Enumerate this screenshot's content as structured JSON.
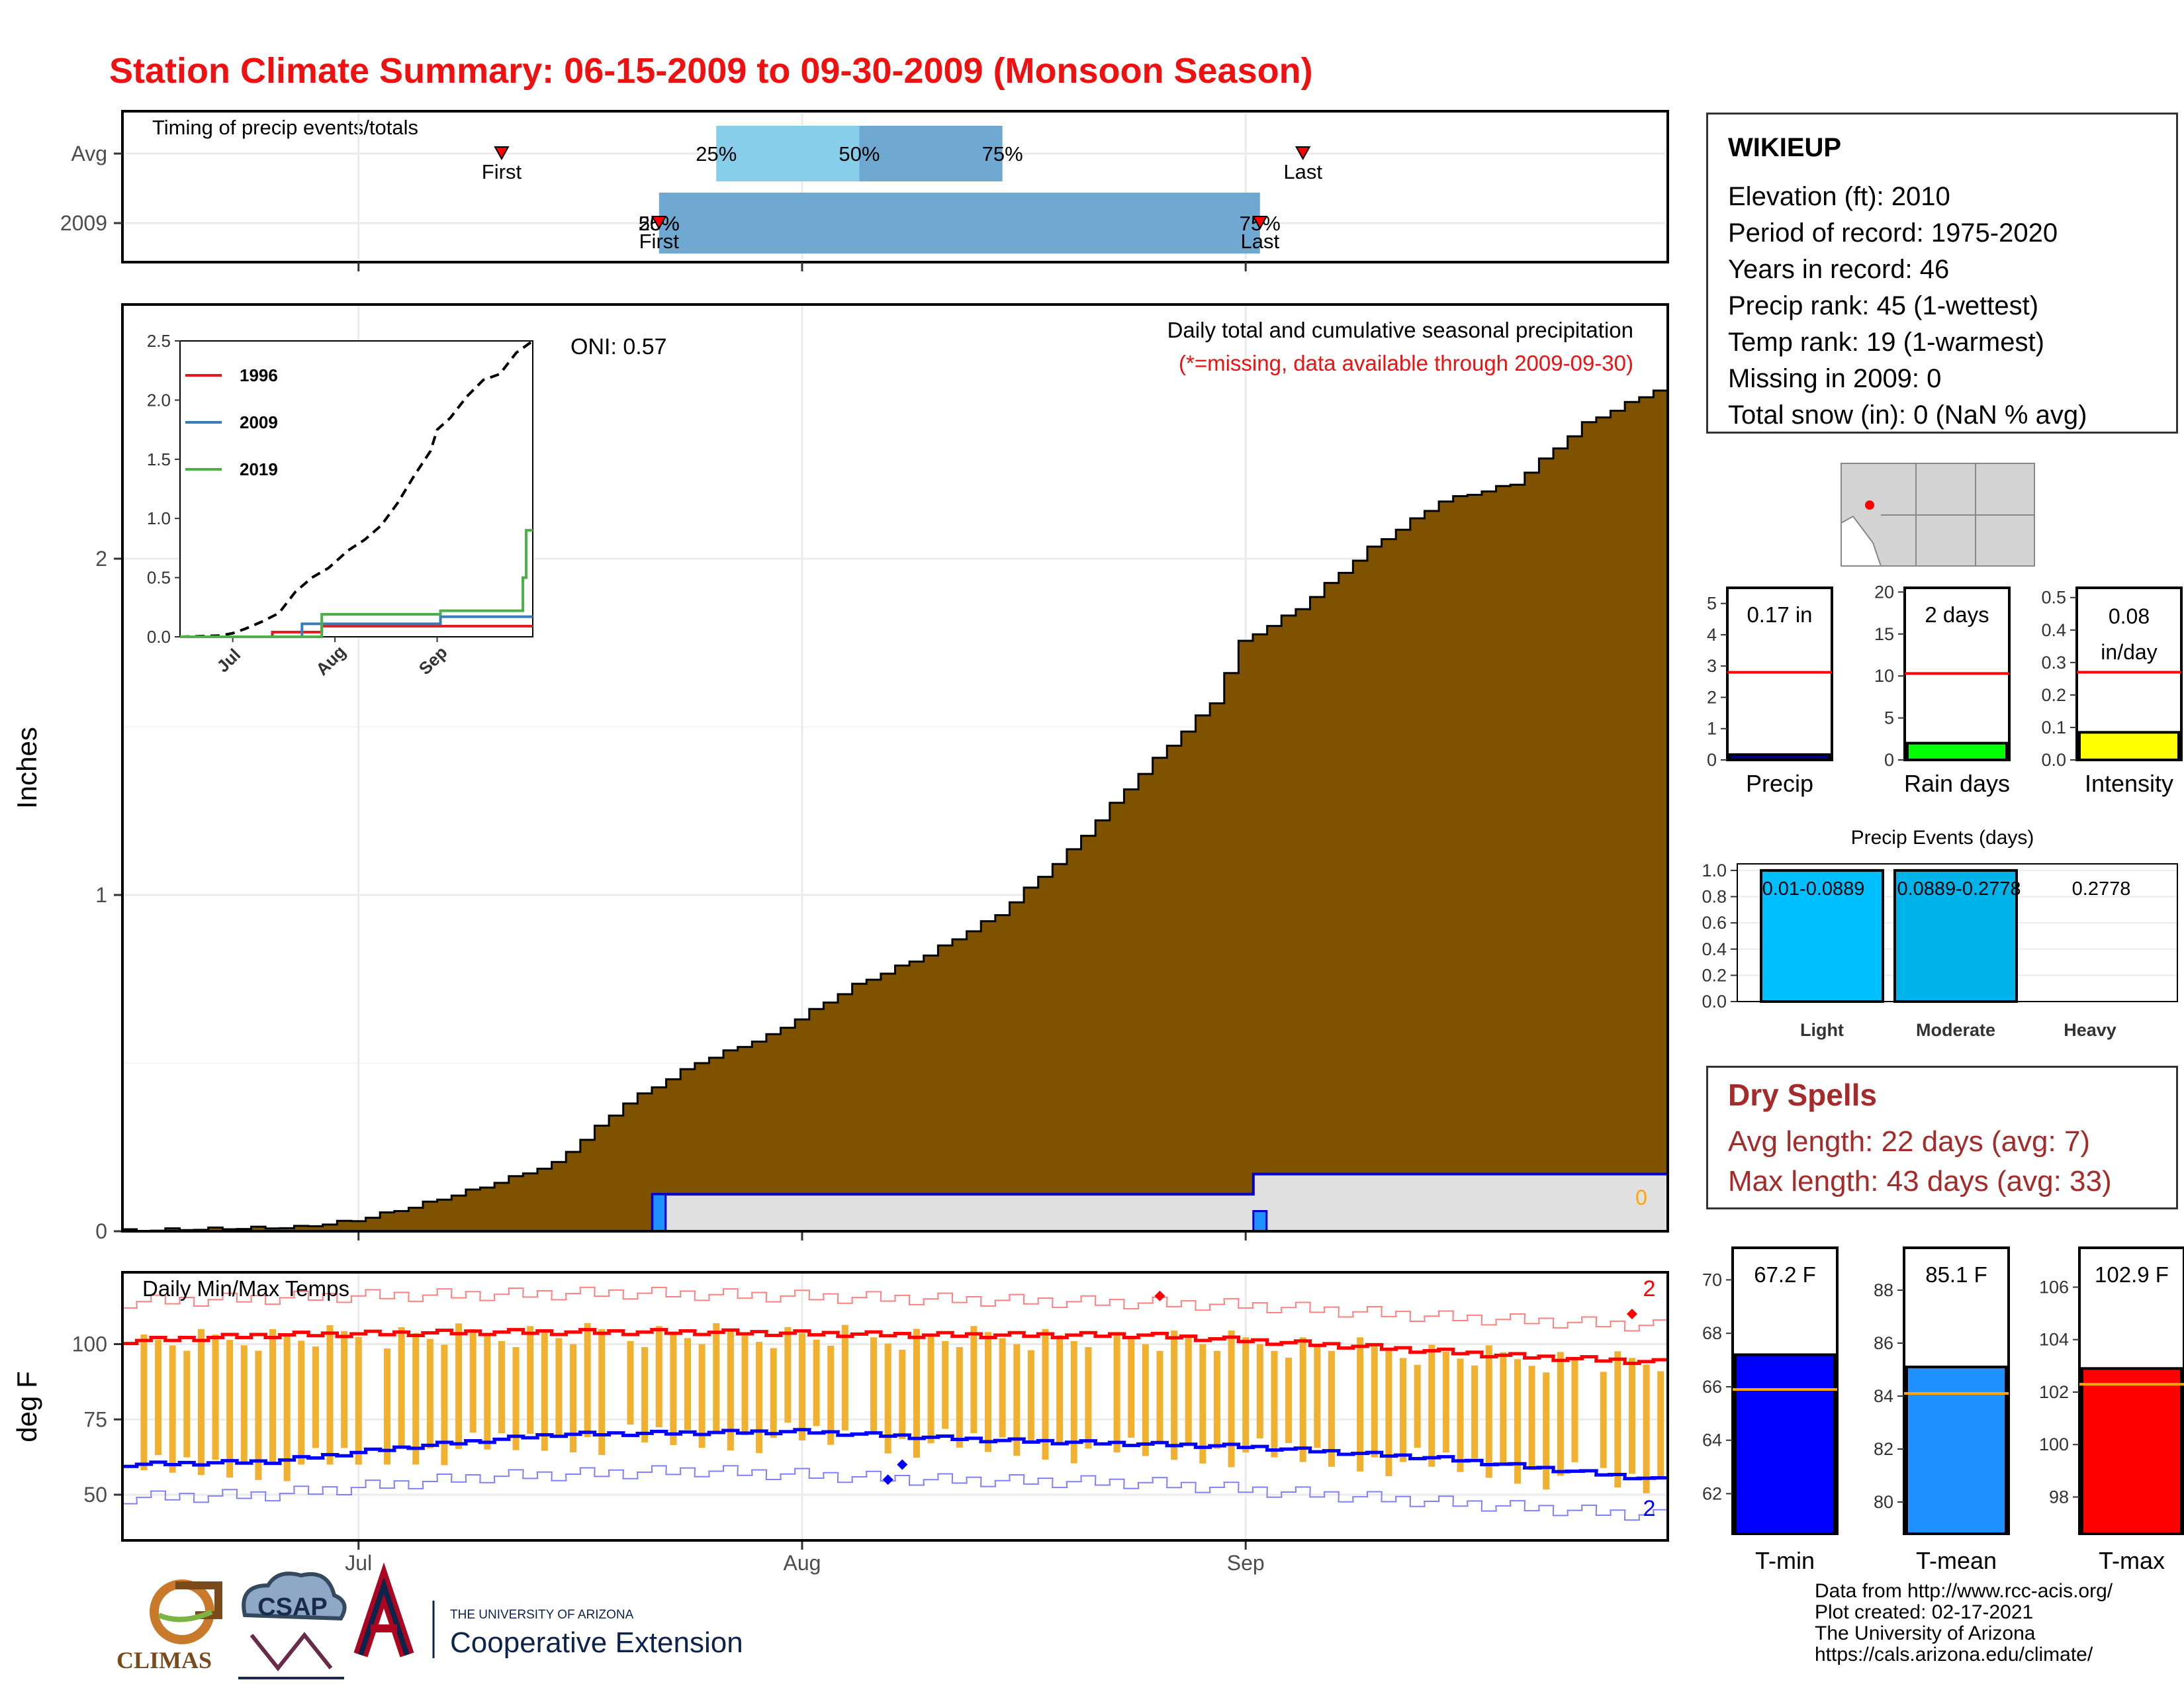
{
  "title": "Station Climate Summary: 06-15-2009 to 09-30-2009 (Monsoon Season)",
  "station": {
    "name": "WIKIEUP",
    "lines": [
      "Elevation (ft): 2010",
      "Period of record: 1975-2020",
      "Years in record: 46",
      "Precip rank: 45 (1-wettest)",
      "Temp rank: 19 (1-warmest)",
      "Missing in 2009: 0",
      "Total snow (in): 0 (NaN % avg)"
    ]
  },
  "dry_spells": {
    "title": "Dry Spells",
    "avg": "Avg length: 22 days (avg: 7)",
    "max": "Max length: 43 days (avg: 33)"
  },
  "footer": {
    "lines": [
      "Data from http://www.rcc-acis.org/",
      "Plot created: 02-17-2021",
      "The University of Arizona",
      "https://cals.arizona.edu/climate/"
    ],
    "logos": {
      "climas": "CLIMAS",
      "csap": "CSAP",
      "ua_small": "THE UNIVERSITY OF ARIZONA",
      "ua_big": "Cooperative Extension"
    }
  },
  "colors": {
    "title": "#ee1111",
    "cumulative": "#7f5200",
    "tmax": "#ff0000",
    "tmin": "#0000ff",
    "range_bar": "#f0b030",
    "avg_band_light": "#87ceeb",
    "avg_band_dark": "#6fa8d0"
  },
  "chart_data": [
    {
      "id": "timing",
      "type": "bar",
      "title": "Timing of precip events/totals",
      "categories": [
        "Avg",
        "2009"
      ],
      "avg": {
        "p25": "2009-07-26",
        "p50": "2009-08-05",
        "p75": "2009-08-15",
        "first": "2009-07-11",
        "last": "2009-09-05",
        "labels": {
          "p25": "25%",
          "p50": "50%",
          "p75": "75%",
          "first": "First",
          "last": "Last"
        }
      },
      "y2009": {
        "start": "2009-07-22",
        "end": "2009-09-02",
        "first": "2009-07-22",
        "last": "2009-09-02",
        "labels": {
          "start": "25%",
          "start2": "50%",
          "end": "75%",
          "first": "First",
          "last": "Last"
        }
      },
      "x_ticks": [
        "2009-07-01",
        "2009-08-01",
        "2009-09-01"
      ]
    },
    {
      "id": "cumulative",
      "type": "area",
      "title": "Daily total and cumulative seasonal precipitation",
      "subtitle": "(*=missing, data available through 2009-09-30)",
      "annotation": "ONI: 0.57",
      "ylabel": "Inches",
      "ylim": [
        0,
        2.5
      ],
      "y_ticks": [
        0,
        1,
        2
      ],
      "x_range": [
        "2009-06-15",
        "2009-09-30"
      ],
      "x_ticks": [
        "2009-07-01",
        "2009-08-01",
        "2009-09-01"
      ],
      "cumulative_avg": [
        {
          "d": "2009-06-15",
          "v": 0
        },
        {
          "d": "2009-06-27",
          "v": 0.01
        },
        {
          "d": "2009-07-01",
          "v": 0.03
        },
        {
          "d": "2009-07-05",
          "v": 0.07
        },
        {
          "d": "2009-07-10",
          "v": 0.13
        },
        {
          "d": "2009-07-15",
          "v": 0.2
        },
        {
          "d": "2009-07-20",
          "v": 0.38
        },
        {
          "d": "2009-07-25",
          "v": 0.5
        },
        {
          "d": "2009-07-30",
          "v": 0.58
        },
        {
          "d": "2009-08-05",
          "v": 0.73
        },
        {
          "d": "2009-08-10",
          "v": 0.82
        },
        {
          "d": "2009-08-15",
          "v": 0.94
        },
        {
          "d": "2009-08-20",
          "v": 1.13
        },
        {
          "d": "2009-08-25",
          "v": 1.36
        },
        {
          "d": "2009-08-30",
          "v": 1.57
        },
        {
          "d": "2009-09-01",
          "v": 1.75
        },
        {
          "d": "2009-09-05",
          "v": 1.85
        },
        {
          "d": "2009-09-10",
          "v": 2.03
        },
        {
          "d": "2009-09-15",
          "v": 2.17
        },
        {
          "d": "2009-09-20",
          "v": 2.22
        },
        {
          "d": "2009-09-25",
          "v": 2.4
        },
        {
          "d": "2009-09-30",
          "v": 2.5
        }
      ],
      "cumulative_2009": [
        {
          "d": "2009-06-15",
          "v": 0
        },
        {
          "d": "2009-07-22",
          "v": 0.11
        },
        {
          "d": "2009-09-02",
          "v": 0.17
        },
        {
          "d": "2009-09-30",
          "v": 0.17
        }
      ],
      "daily_2009": [
        {
          "d": "2009-07-22",
          "v": 0.11
        },
        {
          "d": "2009-09-02",
          "v": 0.06
        }
      ],
      "right_label": "0",
      "inset": {
        "type": "line",
        "ylim": [
          0,
          2.5
        ],
        "y_ticks": [
          "0.0",
          "0.5",
          "1.0",
          "1.5",
          "2.0",
          "2.5"
        ],
        "x_ticks": [
          "Jul",
          "Aug",
          "Sep"
        ],
        "series": [
          {
            "name": "1996",
            "color": "#e41a1c",
            "points": [
              {
                "d": "2009-06-15",
                "v": 0
              },
              {
                "d": "2009-07-13",
                "v": 0.04
              },
              {
                "d": "2009-07-28",
                "v": 0.09
              },
              {
                "d": "2009-09-30",
                "v": 0.09
              }
            ]
          },
          {
            "name": "2009",
            "color": "#377eb8",
            "points": [
              {
                "d": "2009-06-15",
                "v": 0
              },
              {
                "d": "2009-07-22",
                "v": 0.11
              },
              {
                "d": "2009-09-02",
                "v": 0.17
              },
              {
                "d": "2009-09-30",
                "v": 0.17
              }
            ]
          },
          {
            "name": "2019",
            "color": "#4daf4a",
            "points": [
              {
                "d": "2009-06-15",
                "v": 0
              },
              {
                "d": "2009-07-28",
                "v": 0.19
              },
              {
                "d": "2009-09-02",
                "v": 0.22
              },
              {
                "d": "2009-09-25",
                "v": 0.22
              },
              {
                "d": "2009-09-27",
                "v": 0.5
              },
              {
                "d": "2009-09-28",
                "v": 0.9
              },
              {
                "d": "2009-09-30",
                "v": 0.9
              }
            ]
          }
        ],
        "avg_dashed": true
      }
    },
    {
      "id": "temps",
      "type": "line",
      "title": "Daily Min/Max Temps",
      "ylabel": "deg F",
      "ylim": [
        40,
        125
      ],
      "y_ticks": [
        50,
        75,
        100
      ],
      "x_ticks": [
        "2009-07-01",
        "2009-08-01",
        "2009-09-01"
      ],
      "x_tick_labels": [
        "Jul",
        "Aug",
        "Sep"
      ],
      "count_above": "2",
      "count_below": "2",
      "avg_max": [
        {
          "d": "2009-06-15",
          "v": 101
        },
        {
          "d": "2009-06-25",
          "v": 103
        },
        {
          "d": "2009-07-10",
          "v": 104
        },
        {
          "d": "2009-07-25",
          "v": 104
        },
        {
          "d": "2009-08-10",
          "v": 103
        },
        {
          "d": "2009-08-25",
          "v": 103
        },
        {
          "d": "2009-09-10",
          "v": 99
        },
        {
          "d": "2009-09-20",
          "v": 96
        },
        {
          "d": "2009-09-30",
          "v": 94
        }
      ],
      "avg_min": [
        {
          "d": "2009-06-15",
          "v": 60
        },
        {
          "d": "2009-06-25",
          "v": 61
        },
        {
          "d": "2009-07-05",
          "v": 66
        },
        {
          "d": "2009-07-15",
          "v": 70
        },
        {
          "d": "2009-08-01",
          "v": 71
        },
        {
          "d": "2009-08-15",
          "v": 68
        },
        {
          "d": "2009-09-01",
          "v": 66
        },
        {
          "d": "2009-09-15",
          "v": 62
        },
        {
          "d": "2009-09-30",
          "v": 55
        }
      ],
      "record_max": [
        {
          "d": "2009-06-15",
          "v": 114
        },
        {
          "d": "2009-07-01",
          "v": 116
        },
        {
          "d": "2009-07-20",
          "v": 117
        },
        {
          "d": "2009-08-10",
          "v": 115
        },
        {
          "d": "2009-09-01",
          "v": 113
        },
        {
          "d": "2009-09-15",
          "v": 109
        },
        {
          "d": "2009-09-30",
          "v": 106
        }
      ],
      "record_min": [
        {
          "d": "2009-06-15",
          "v": 49
        },
        {
          "d": "2009-06-25",
          "v": 50
        },
        {
          "d": "2009-07-10",
          "v": 56
        },
        {
          "d": "2009-07-25",
          "v": 58
        },
        {
          "d": "2009-08-10",
          "v": 55
        },
        {
          "d": "2009-08-25",
          "v": 54
        },
        {
          "d": "2009-09-10",
          "v": 49
        },
        {
          "d": "2009-09-30",
          "v": 43
        }
      ],
      "daily_bars_note": "daily 2009 max/min range",
      "daily_highlights": [
        {
          "d": "2009-08-26",
          "v": 116,
          "kind": "max"
        },
        {
          "d": "2009-09-28",
          "v": 110,
          "kind": "max"
        },
        {
          "d": "2009-08-07",
          "v": 55,
          "kind": "min"
        },
        {
          "d": "2009-08-08",
          "v": 60,
          "kind": "min"
        }
      ]
    },
    {
      "id": "precip_summary",
      "type": "bar",
      "panels": [
        {
          "name": "Precip",
          "label": "0.17 in",
          "value": 0.17,
          "avg": 2.8,
          "ylim": [
            0,
            5.5
          ],
          "ticks": [
            0,
            1,
            2,
            3,
            4,
            5
          ],
          "color": "#000080"
        },
        {
          "name": "Rain days",
          "label": "2 days",
          "value": 2,
          "avg": 10.3,
          "ylim": [
            0,
            20.5
          ],
          "ticks": [
            0,
            5,
            10,
            15,
            20
          ],
          "color": "#00ff00"
        },
        {
          "name": "Intensity",
          "label": "0.08 in/day",
          "label_lines": [
            "0.08",
            "in/day"
          ],
          "value": 0.085,
          "avg": 0.27,
          "ylim": [
            0,
            0.53
          ],
          "ticks": [
            "0.0",
            "0.1",
            "0.2",
            "0.3",
            "0.4",
            "0.5"
          ],
          "color": "#ffff00"
        }
      ]
    },
    {
      "id": "precip_events",
      "type": "bar",
      "title": "Precip Events (days)",
      "categories": [
        "Light",
        "Moderate",
        "Heavy"
      ],
      "values": [
        1,
        1,
        0
      ],
      "bar_labels": [
        "0.01-0.0889",
        "0.0889-0.2778",
        "0.2778"
      ],
      "ylim": [
        0,
        1.05
      ],
      "y_ticks": [
        "0.0",
        "0.2",
        "0.4",
        "0.6",
        "0.8",
        "1.0"
      ]
    },
    {
      "id": "temp_summary",
      "type": "bar",
      "panels": [
        {
          "name": "T-min",
          "label": "67.2 F",
          "value": 67.2,
          "avg": 65.9,
          "ylim": [
            60.5,
            71.2
          ],
          "ticks": [
            62,
            64,
            66,
            68,
            70
          ],
          "color": "#0000ff"
        },
        {
          "name": "T-mean",
          "label": "85.1 F",
          "value": 85.1,
          "avg": 84.1,
          "ylim": [
            78.8,
            89.6
          ],
          "ticks": [
            80,
            82,
            84,
            86,
            88
          ],
          "color": "#1e90ff"
        },
        {
          "name": "T-max",
          "label": "102.9 F",
          "value": 102.9,
          "avg": 102.3,
          "ylim": [
            96.6,
            107.5
          ],
          "ticks": [
            98,
            100,
            102,
            104,
            106
          ],
          "color": "#ff0000"
        }
      ]
    }
  ]
}
